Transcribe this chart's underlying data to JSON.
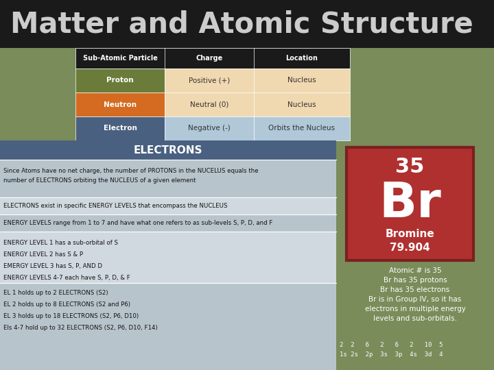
{
  "title": "Matter and Atomic Structure",
  "title_bg": "#1a1a1a",
  "title_color": "#cccccc",
  "bg_color": "#7a8c5a",
  "table_header": [
    "Sub-Atomic Particle",
    "Charge",
    "Location"
  ],
  "table_rows": [
    [
      "Proton",
      "Positive (+)",
      "Nucleus"
    ],
    [
      "Neutron",
      "Neutral (0)",
      "Nucleus"
    ],
    [
      "Electron",
      "Negative (-)",
      "Orbits the Nucleus"
    ]
  ],
  "row_col1_colors": [
    "#6b7c3a",
    "#d46b20",
    "#4a6080"
  ],
  "row_col2_colors": [
    "#f0d8b0",
    "#f0d8b0",
    "#b0c8d8"
  ],
  "row_col3_colors": [
    "#f0d8b0",
    "#f0d8b0",
    "#b0c8d8"
  ],
  "header_bg": "#1a1a1a",
  "header_color": "#ffffff",
  "electrons_header_bg": "#4a6080",
  "electrons_header_color": "#ffffff",
  "electrons_title": "ELECTRONS",
  "left_panel_bg": "#d0d8e0",
  "left_panel_alt_bg": "#b8c4cc",
  "electrons_lines": [
    "Since Atoms have no net charge, the number of PROTONS in the NUCELUS equals the",
    "number of ELECTRONS orbiting the NUCLEUS of a given element"
  ],
  "electrons_line2": "ELECTRONS exist in specific ENERGY LEVELS that encompass the NUCLEUS",
  "electrons_line3": "ENERGY LEVELS range from 1 to 7 and have what one refers to as sub-levels S, P, D, and F",
  "electrons_lines_b": [
    "ENERGY LEVEL 1 has a sub-orbital of S",
    "ENERGY LEVEL 2 has S & P",
    "EMERGY LEVEL 3 has S, P, AND D",
    "ENERGY LEVELS 4-7 each have S, P, D, & F"
  ],
  "electrons_lines_c": [
    "EL 1 holds up to 2 ELECTRONS (S2)",
    "EL 2 holds up to 8 ELECTRONS (S2 and P6)",
    "EL 3 holds up to 18 ELECTRONS (S2, P6, D10)",
    "Els 4-7 hold up to 32 ELECTRONS (S2, P6, D10, F14)"
  ],
  "element_box_bg": "#b03030",
  "element_box_border": "#7a2020",
  "element_number": "35",
  "element_symbol": "Br",
  "element_name": "Bromine",
  "element_mass": "79.904",
  "element_text_color": "#ffffff",
  "right_info_color": "#ffffff",
  "right_info_lines": [
    "Atomic # is 35",
    "Br has 35 protons",
    "Br has 35 electrons",
    "Br is in Group IV, so it has",
    "electrons in multiple energy",
    "levels and sub-orbitals."
  ],
  "orbital_numbers": "2  2   6   2   6   2   10  5",
  "orbital_labels": "1s 2s  2p  3s  3p  4s  3d  4"
}
